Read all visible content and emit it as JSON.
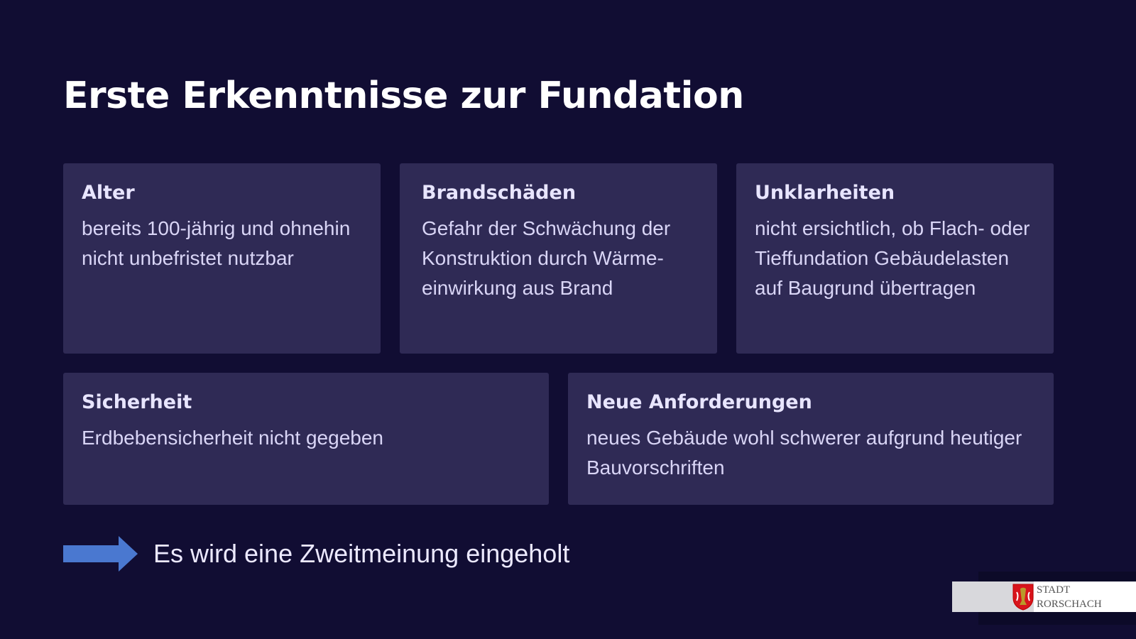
{
  "title": "Erste Erkenntnisse zur Fundation",
  "cards": [
    {
      "heading": "Alter",
      "text": "bereits 100-jährig und ohnehin nicht unbefristet nutzbar"
    },
    {
      "heading": "Brandschäden",
      "text": "Gefahr der Schwächung der Konstruktion durch Wärme-einwirkung aus Brand"
    },
    {
      "heading": "Unklarheiten",
      "text": "nicht ersichtlich, ob Flach- oder Tieffundation Gebäudelasten auf Baugrund übertragen"
    },
    {
      "heading": "Sicherheit",
      "text": "Erdbebensicherheit nicht gegeben"
    },
    {
      "heading": "Neue Anforderungen",
      "text": "neues Gebäude wohl schwerer aufgrund heutiger Bauvorschriften"
    }
  ],
  "conclusion": {
    "icon": "arrow-right-icon",
    "text": "Es wird eine Zweitmeinung eingeholt"
  },
  "logo": {
    "line1": "STADT",
    "line2": "RORSCHACH"
  },
  "colors": {
    "background": "#110d33",
    "card": "#2f2a55",
    "arrow": "#4a78d0"
  }
}
